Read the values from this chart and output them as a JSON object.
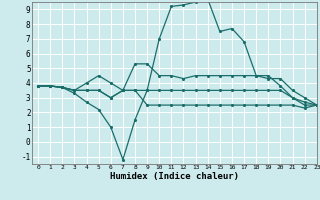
{
  "xlabel": "Humidex (Indice chaleur)",
  "bg_color": "#cdeaed",
  "grid_color": "#ffffff",
  "line_color": "#1a6e6a",
  "xlim": [
    -0.5,
    23
  ],
  "ylim": [
    -1.5,
    9.5
  ],
  "xtick_labels": [
    "0",
    "1",
    "2",
    "3",
    "4",
    "5",
    "6",
    "7",
    "8",
    "9",
    "10",
    "11",
    "12",
    "13",
    "14",
    "15",
    "16",
    "17",
    "18",
    "19",
    "20",
    "21",
    "22",
    "23"
  ],
  "ytick_labels": [
    "-1",
    "0",
    "1",
    "2",
    "3",
    "4",
    "5",
    "6",
    "7",
    "8",
    "9"
  ],
  "ytick_vals": [
    -1,
    0,
    1,
    2,
    3,
    4,
    5,
    6,
    7,
    8,
    9
  ],
  "series": [
    [
      3.8,
      3.8,
      3.7,
      3.5,
      3.5,
      3.5,
      3.0,
      3.5,
      3.5,
      3.5,
      3.5,
      3.5,
      3.5,
      3.5,
      3.5,
      3.5,
      3.5,
      3.5,
      3.5,
      3.5,
      3.5,
      3.0,
      2.5,
      2.5
    ],
    [
      3.8,
      3.8,
      3.7,
      3.3,
      2.7,
      2.2,
      1.0,
      -1.2,
      1.5,
      3.5,
      7.0,
      9.2,
      9.3,
      9.5,
      9.7,
      7.5,
      7.7,
      6.8,
      4.5,
      4.5,
      3.8,
      3.0,
      2.7,
      2.5
    ],
    [
      3.8,
      3.8,
      3.7,
      3.5,
      4.0,
      4.5,
      4.0,
      3.5,
      5.3,
      5.3,
      4.5,
      4.5,
      4.3,
      4.5,
      4.5,
      4.5,
      4.5,
      4.5,
      4.5,
      4.3,
      4.3,
      3.5,
      3.0,
      2.5
    ],
    [
      3.8,
      3.8,
      3.7,
      3.5,
      3.5,
      3.5,
      3.0,
      3.5,
      3.5,
      2.5,
      2.5,
      2.5,
      2.5,
      2.5,
      2.5,
      2.5,
      2.5,
      2.5,
      2.5,
      2.5,
      2.5,
      2.5,
      2.3,
      2.5
    ]
  ]
}
